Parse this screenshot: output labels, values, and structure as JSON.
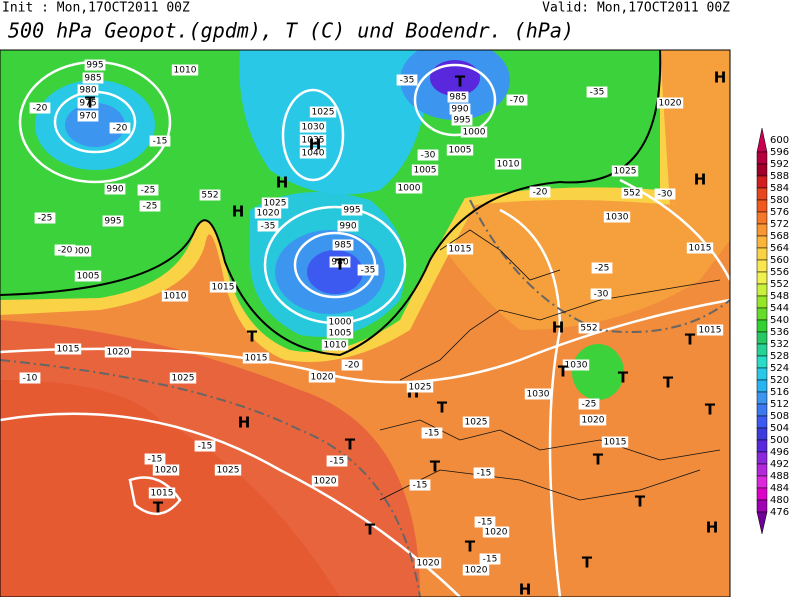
{
  "header": {
    "init": "Init : Mon,17OCT2011 00Z",
    "valid": "Valid: Mon,17OCT2011 00Z",
    "title": "500 hPa Geopot.(gpdm), T (C) und Bodendr. (hPa)"
  },
  "colorbar": {
    "labels": [
      600,
      596,
      592,
      588,
      584,
      580,
      576,
      572,
      568,
      564,
      560,
      556,
      552,
      548,
      544,
      540,
      536,
      532,
      528,
      524,
      520,
      516,
      512,
      508,
      504,
      500,
      496,
      492,
      488,
      484,
      480,
      476
    ],
    "colors": [
      "#c80050",
      "#b4003c",
      "#a00028",
      "#d21e1e",
      "#e6461e",
      "#f05a1e",
      "#f57828",
      "#fa9632",
      "#fab43c",
      "#fad246",
      "#fae650",
      "#f0f050",
      "#c8f03c",
      "#96e628",
      "#64dc28",
      "#32d232",
      "#28c864",
      "#28d296",
      "#28dcc8",
      "#28c8e6",
      "#28b4f0",
      "#3c96f0",
      "#3c78f0",
      "#3c5af0",
      "#3c3cdc",
      "#5a28dc",
      "#8c28dc",
      "#b428dc",
      "#dc28dc",
      "#dc00c8",
      "#a000b4",
      "#6e0096"
    ]
  },
  "map_labels": [
    "1010",
    "1025",
    "1030",
    "1035",
    "1040",
    "995",
    "985",
    "980",
    "975",
    "970",
    "-20",
    "-20",
    "T",
    "-15",
    "990",
    "995",
    "1000",
    "1005",
    "1010",
    "1015",
    "-20",
    "-25",
    "-25",
    "-25",
    "552",
    "H",
    "H",
    "H",
    "1025",
    "1020",
    "-35",
    "995",
    "990",
    "985",
    "980",
    "T",
    "-35",
    "1000",
    "1005",
    "1010",
    "-20",
    "T",
    "1015",
    "1020",
    "T",
    "-35",
    "985",
    "990",
    "995",
    "1000",
    "1005",
    "-30",
    "1005",
    "1000",
    "1010",
    "-20",
    "-70",
    "-35",
    "1020",
    "H",
    "1025",
    "-30",
    "552",
    "1030",
    "1015",
    "H",
    "1015",
    "-25",
    "-30",
    "552",
    "H",
    "1030",
    "T",
    "T",
    "1030",
    "-25",
    "1020",
    "1015",
    "T",
    "1015",
    "T",
    "T",
    "T",
    "H",
    "1025",
    "T",
    "-10",
    "1020",
    "1015",
    "1025",
    "H",
    "-15",
    "1025",
    "-15",
    "1020",
    "1015",
    "T",
    "1020",
    "-15",
    "T",
    "T",
    "-15",
    "1025",
    "-15",
    "-15",
    "T",
    "T",
    "-15",
    "1020",
    "-15",
    "1020",
    "1020",
    "T",
    "T",
    "H",
    "H"
  ]
}
